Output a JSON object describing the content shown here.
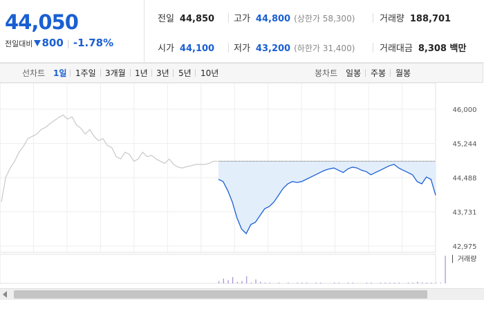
{
  "summary": {
    "price": "44,050",
    "change_label": "전일대비",
    "change_amount": "800",
    "change_rate": "-1.78%",
    "prev_close_label": "전일",
    "prev_close": "44,850",
    "high_label": "고가",
    "high": "44,800",
    "upper_limit_note": "(상한가 58,300)",
    "volume_label": "거래량",
    "volume": "188,701",
    "open_label": "시가",
    "open": "44,100",
    "low_label": "저가",
    "low": "43,200",
    "lower_limit_note": "(하한가 31,400)",
    "amount_label": "거래대금",
    "amount": "8,308 백만"
  },
  "toolbar": {
    "line_chart_label": "선차트",
    "periods": [
      "1일",
      "1주일",
      "3개월",
      "1년",
      "3년",
      "5년",
      "10년"
    ],
    "active_period": "1일",
    "candle_chart_label": "봉차트",
    "candles": [
      "일봉",
      "주봉",
      "월봉"
    ]
  },
  "colors": {
    "down": "#1a5fd2",
    "prev_line": "#c8c8c8",
    "fill": "#e3eefb",
    "volume_bar": "#a58ad8"
  },
  "chart_data": {
    "type": "line",
    "y_ticks": [
      "46,000",
      "45,244",
      "44,488",
      "43,731",
      "42,975"
    ],
    "ylim": [
      42975,
      46000
    ],
    "reference_value": 44850,
    "series": [
      {
        "role": "previous-day",
        "values": [
          43950,
          44500,
          44700,
          44850,
          45050,
          45180,
          45350,
          45400,
          45450,
          45550,
          45600,
          45680,
          45750,
          45820,
          45870,
          45780,
          45830,
          45650,
          45580,
          45450,
          45550,
          45400,
          45300,
          45350,
          45200,
          45150,
          44950,
          44900,
          45050,
          45000,
          44850,
          44900,
          45050,
          44950,
          44980,
          44900,
          44850,
          44800,
          44900,
          44780,
          44720,
          44700,
          44730,
          44750,
          44780,
          44780,
          44780,
          44800,
          44850,
          44850
        ]
      },
      {
        "role": "today",
        "values": [
          44450,
          44400,
          44200,
          43950,
          43600,
          43350,
          43250,
          43450,
          43500,
          43650,
          43800,
          43850,
          43950,
          44100,
          44250,
          44350,
          44400,
          44380,
          44400,
          44450,
          44500,
          44550,
          44600,
          44650,
          44680,
          44700,
          44650,
          44600,
          44680,
          44720,
          44700,
          44650,
          44620,
          44550,
          44600,
          44650,
          44700,
          44750,
          44780,
          44700,
          44650,
          44600,
          44550,
          44400,
          44350,
          44500,
          44450,
          44100
        ]
      }
    ],
    "volume_label": "거래량",
    "volume": [
      0,
      0,
      0,
      0,
      0,
      0,
      0,
      0,
      0,
      0,
      0,
      0,
      0,
      0,
      0,
      0,
      0,
      0,
      0,
      0,
      0,
      0,
      0,
      0,
      0,
      0,
      0,
      0,
      0,
      0,
      0,
      0,
      0,
      0,
      0,
      0,
      0,
      0,
      0,
      0,
      0,
      0,
      0,
      0,
      0,
      0,
      0,
      0,
      0,
      0,
      3,
      6,
      4,
      8,
      2,
      3,
      9,
      1,
      5,
      2,
      1,
      1,
      0,
      1,
      0,
      1,
      0,
      1,
      1,
      1,
      0,
      1,
      1,
      0,
      0,
      1,
      1,
      0,
      1,
      1,
      0,
      0,
      1,
      1,
      0,
      1,
      1,
      1,
      1,
      1,
      0,
      1,
      1,
      2,
      1,
      1,
      1,
      1,
      1,
      35
    ]
  }
}
